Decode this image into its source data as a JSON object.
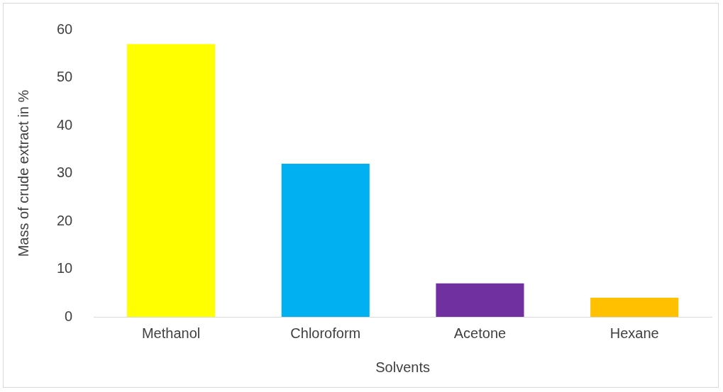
{
  "chart_data": {
    "type": "bar",
    "xlabel": "Solvents",
    "ylabel": "Mass of crude extract in %",
    "categories": [
      "Methanol",
      "Chloroform",
      "Acetone",
      "Hexane"
    ],
    "values": [
      57,
      32,
      7,
      4
    ],
    "colors": [
      "#ffff00",
      "#00b0f0",
      "#7030a0",
      "#ffc000"
    ],
    "ylim": [
      0,
      60
    ],
    "yticks": [
      0,
      10,
      20,
      30,
      40,
      50,
      60
    ],
    "grid": false,
    "legend": false
  }
}
